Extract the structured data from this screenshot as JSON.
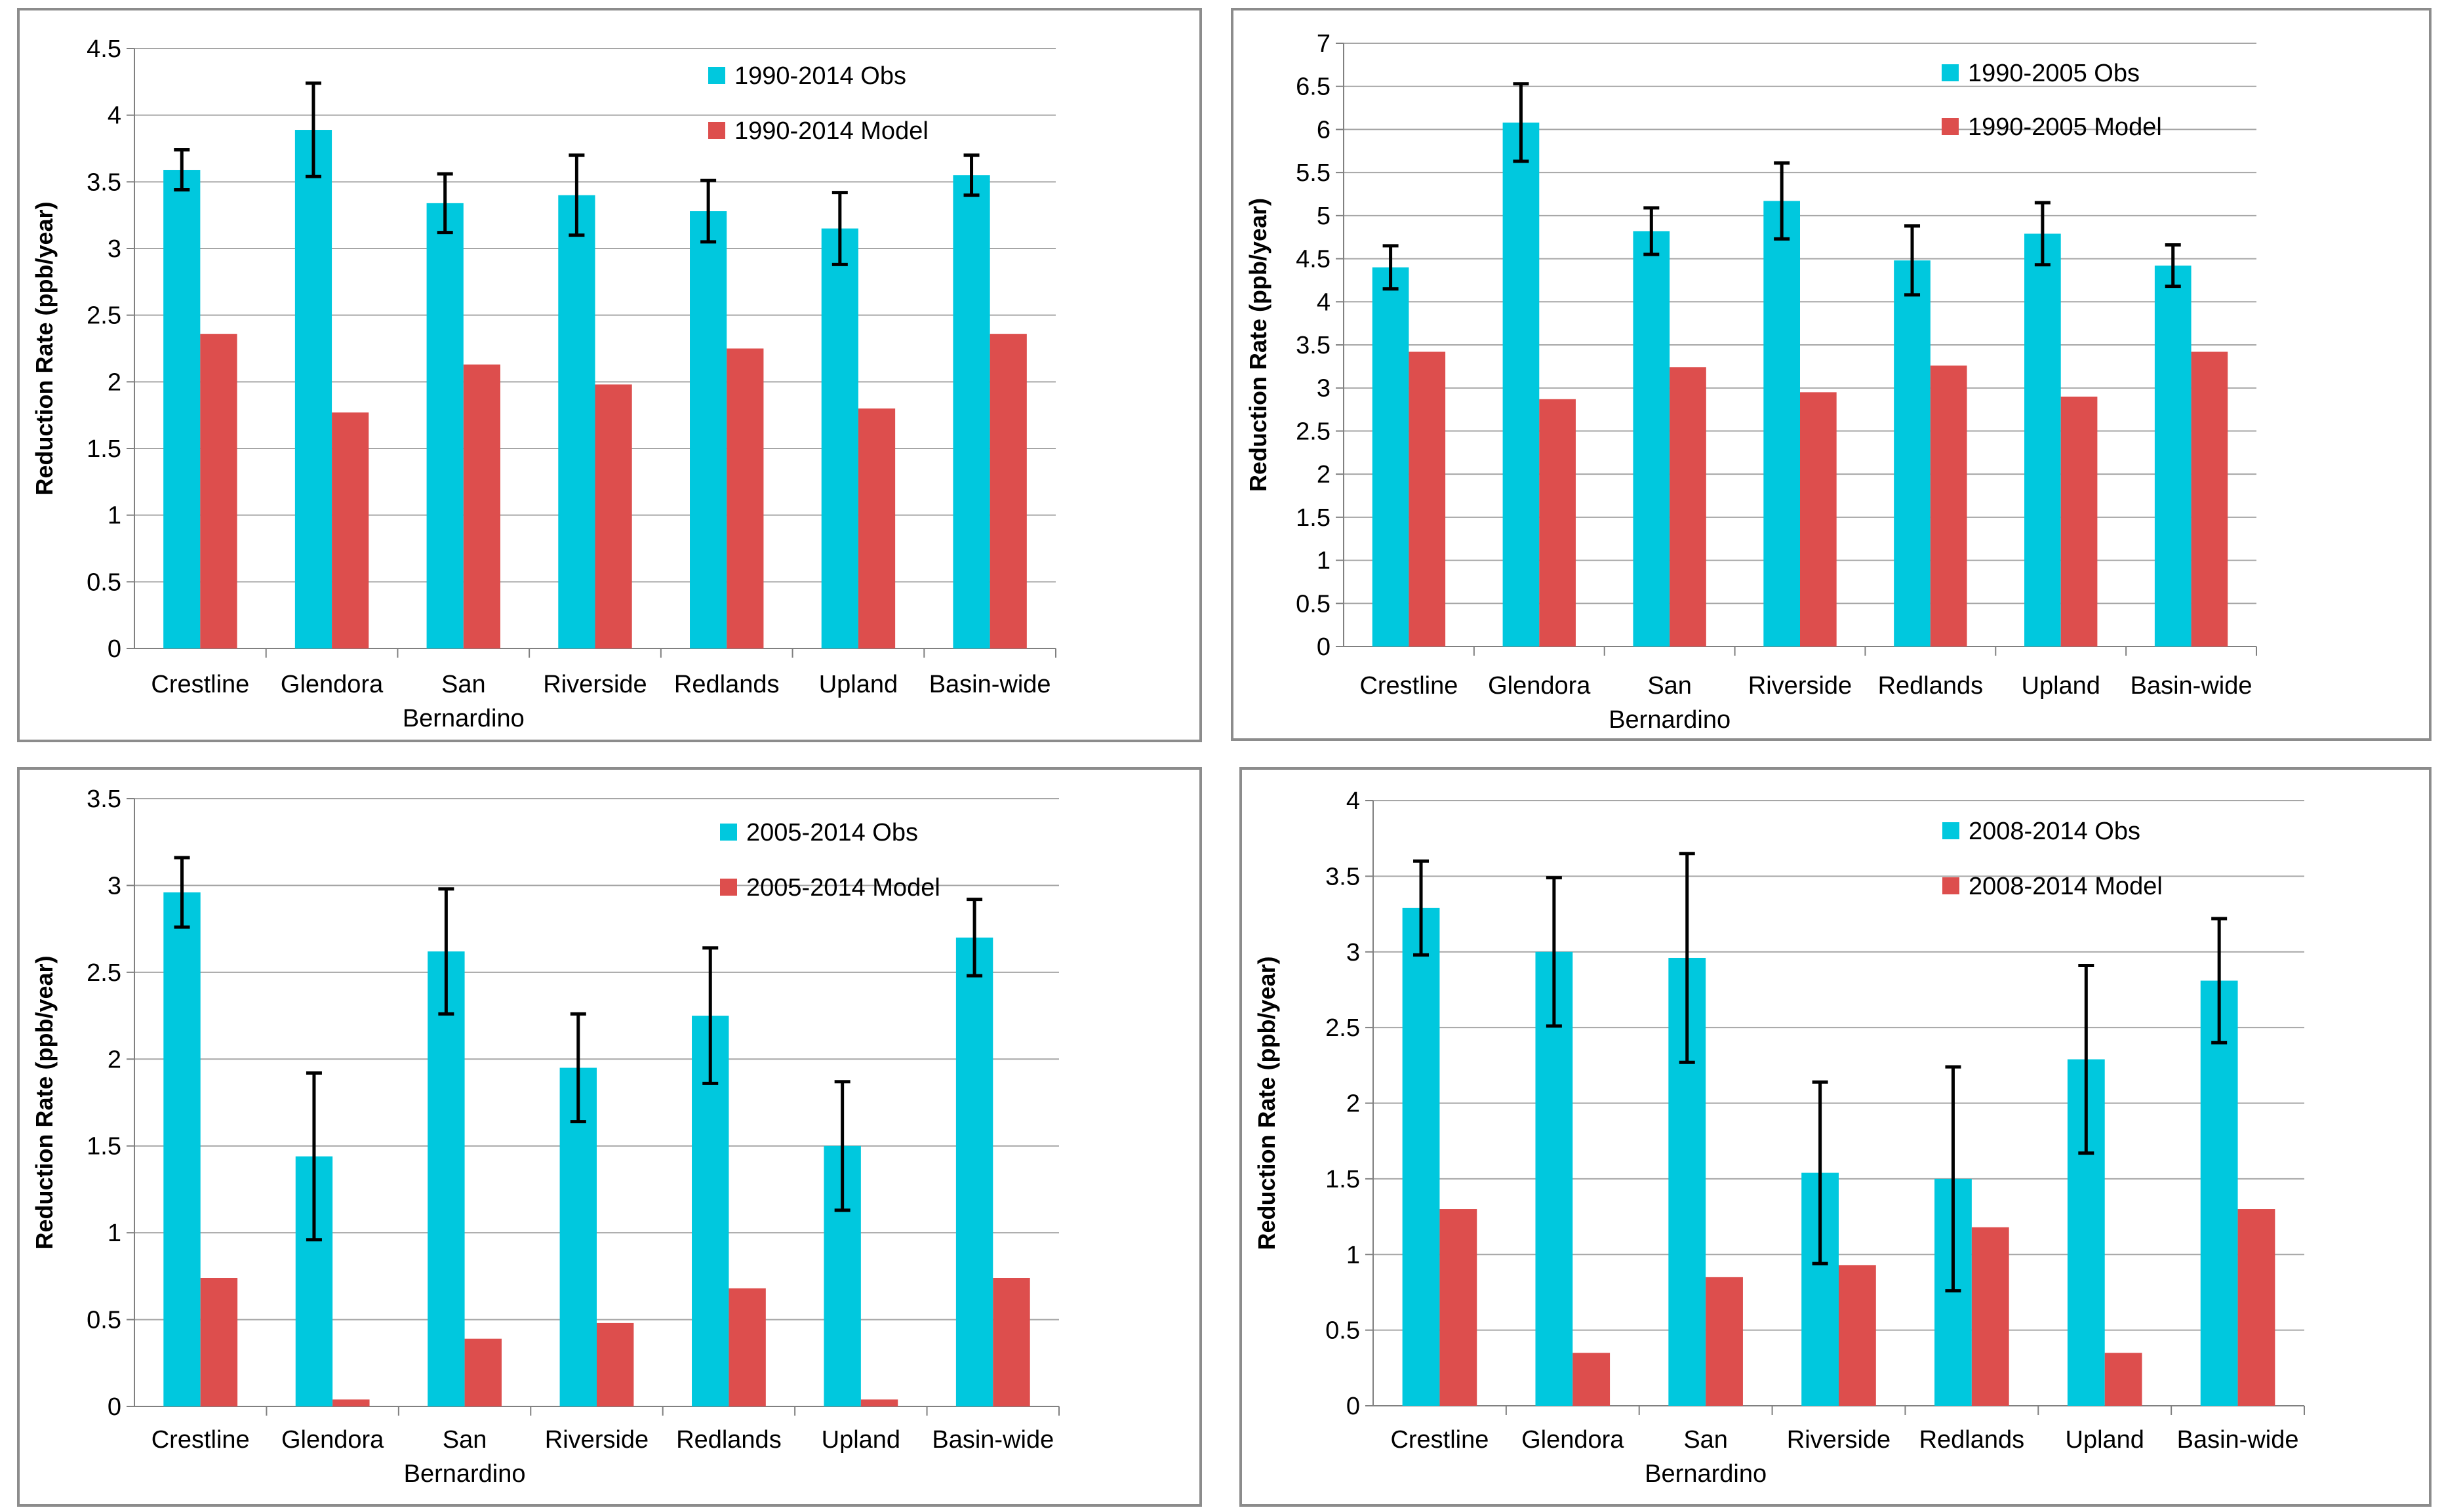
{
  "colors": {
    "obs": "#00c8de",
    "model": "#dd4e4d",
    "grid": "#a6a6a6",
    "axis": "#808080",
    "errorbar": "#000000"
  },
  "chart_data": [
    {
      "type": "bar",
      "ylabel": "Reduction Rate (ppb/year)",
      "categories": [
        "Crestline",
        "Glendora",
        "San Bernardino",
        "Riverside",
        "Redlands",
        "Upland",
        "Basin-wide"
      ],
      "ylim": [
        0,
        4.5
      ],
      "ystep": 0.5,
      "ytick_decimals": 1,
      "series": [
        {
          "name": "1990-2014 Obs",
          "values": [
            3.59,
            3.89,
            3.34,
            3.4,
            3.28,
            3.15,
            3.55
          ],
          "error": [
            0.15,
            0.35,
            0.22,
            0.3,
            0.23,
            0.27,
            0.15
          ]
        },
        {
          "name": "1990-2014 Model",
          "values": [
            2.36,
            1.77,
            2.13,
            1.98,
            2.25,
            1.8,
            2.36
          ]
        }
      ]
    },
    {
      "type": "bar",
      "ylabel": "Reduction Rate (ppb/year)",
      "categories": [
        "Crestline",
        "Glendora",
        "San Bernardino",
        "Riverside",
        "Redlands",
        "Upland",
        "Basin-wide"
      ],
      "ylim": [
        0,
        7
      ],
      "ystep": 0.5,
      "ytick_decimals": 1,
      "series": [
        {
          "name": "1990-2005 Obs",
          "values": [
            4.4,
            6.08,
            4.82,
            5.17,
            4.48,
            4.79,
            4.42
          ],
          "error": [
            0.25,
            0.45,
            0.27,
            0.44,
            0.4,
            0.36,
            0.24
          ]
        },
        {
          "name": "1990-2005 Model",
          "values": [
            3.42,
            2.87,
            3.24,
            2.95,
            3.26,
            2.9,
            3.42
          ]
        }
      ]
    },
    {
      "type": "bar",
      "ylabel": "Reduction Rate (ppb/year)",
      "categories": [
        "Crestline",
        "Glendora",
        "San Bernardino",
        "Riverside",
        "Redlands",
        "Upland",
        "Basin-wide"
      ],
      "ylim": [
        0,
        3.5
      ],
      "ystep": 0.5,
      "ytick_decimals": 1,
      "series": [
        {
          "name": "2005-2014 Obs",
          "values": [
            2.96,
            1.44,
            2.62,
            1.95,
            2.25,
            1.5,
            2.7
          ],
          "error": [
            0.2,
            0.48,
            0.36,
            0.31,
            0.39,
            0.37,
            0.22
          ]
        },
        {
          "name": "2005-2014 Model",
          "values": [
            0.74,
            0.04,
            0.39,
            0.48,
            0.68,
            0.04,
            0.74
          ]
        }
      ]
    },
    {
      "type": "bar",
      "ylabel": "Reduction Rate (ppb/year)",
      "categories": [
        "Crestline",
        "Glendora",
        "San Bernardino",
        "Riverside",
        "Redlands",
        "Upland",
        "Basin-wide"
      ],
      "ylim": [
        0,
        4
      ],
      "ystep": 0.5,
      "ytick_decimals": 1,
      "series": [
        {
          "name": "2008-2014 Obs",
          "values": [
            3.29,
            3.0,
            2.96,
            1.54,
            1.5,
            2.29,
            2.81
          ],
          "error": [
            0.31,
            0.49,
            0.69,
            0.6,
            0.74,
            0.62,
            0.41
          ]
        },
        {
          "name": "2008-2014 Model",
          "values": [
            1.3,
            0.35,
            0.85,
            0.93,
            1.18,
            0.35,
            1.3
          ]
        }
      ]
    }
  ]
}
